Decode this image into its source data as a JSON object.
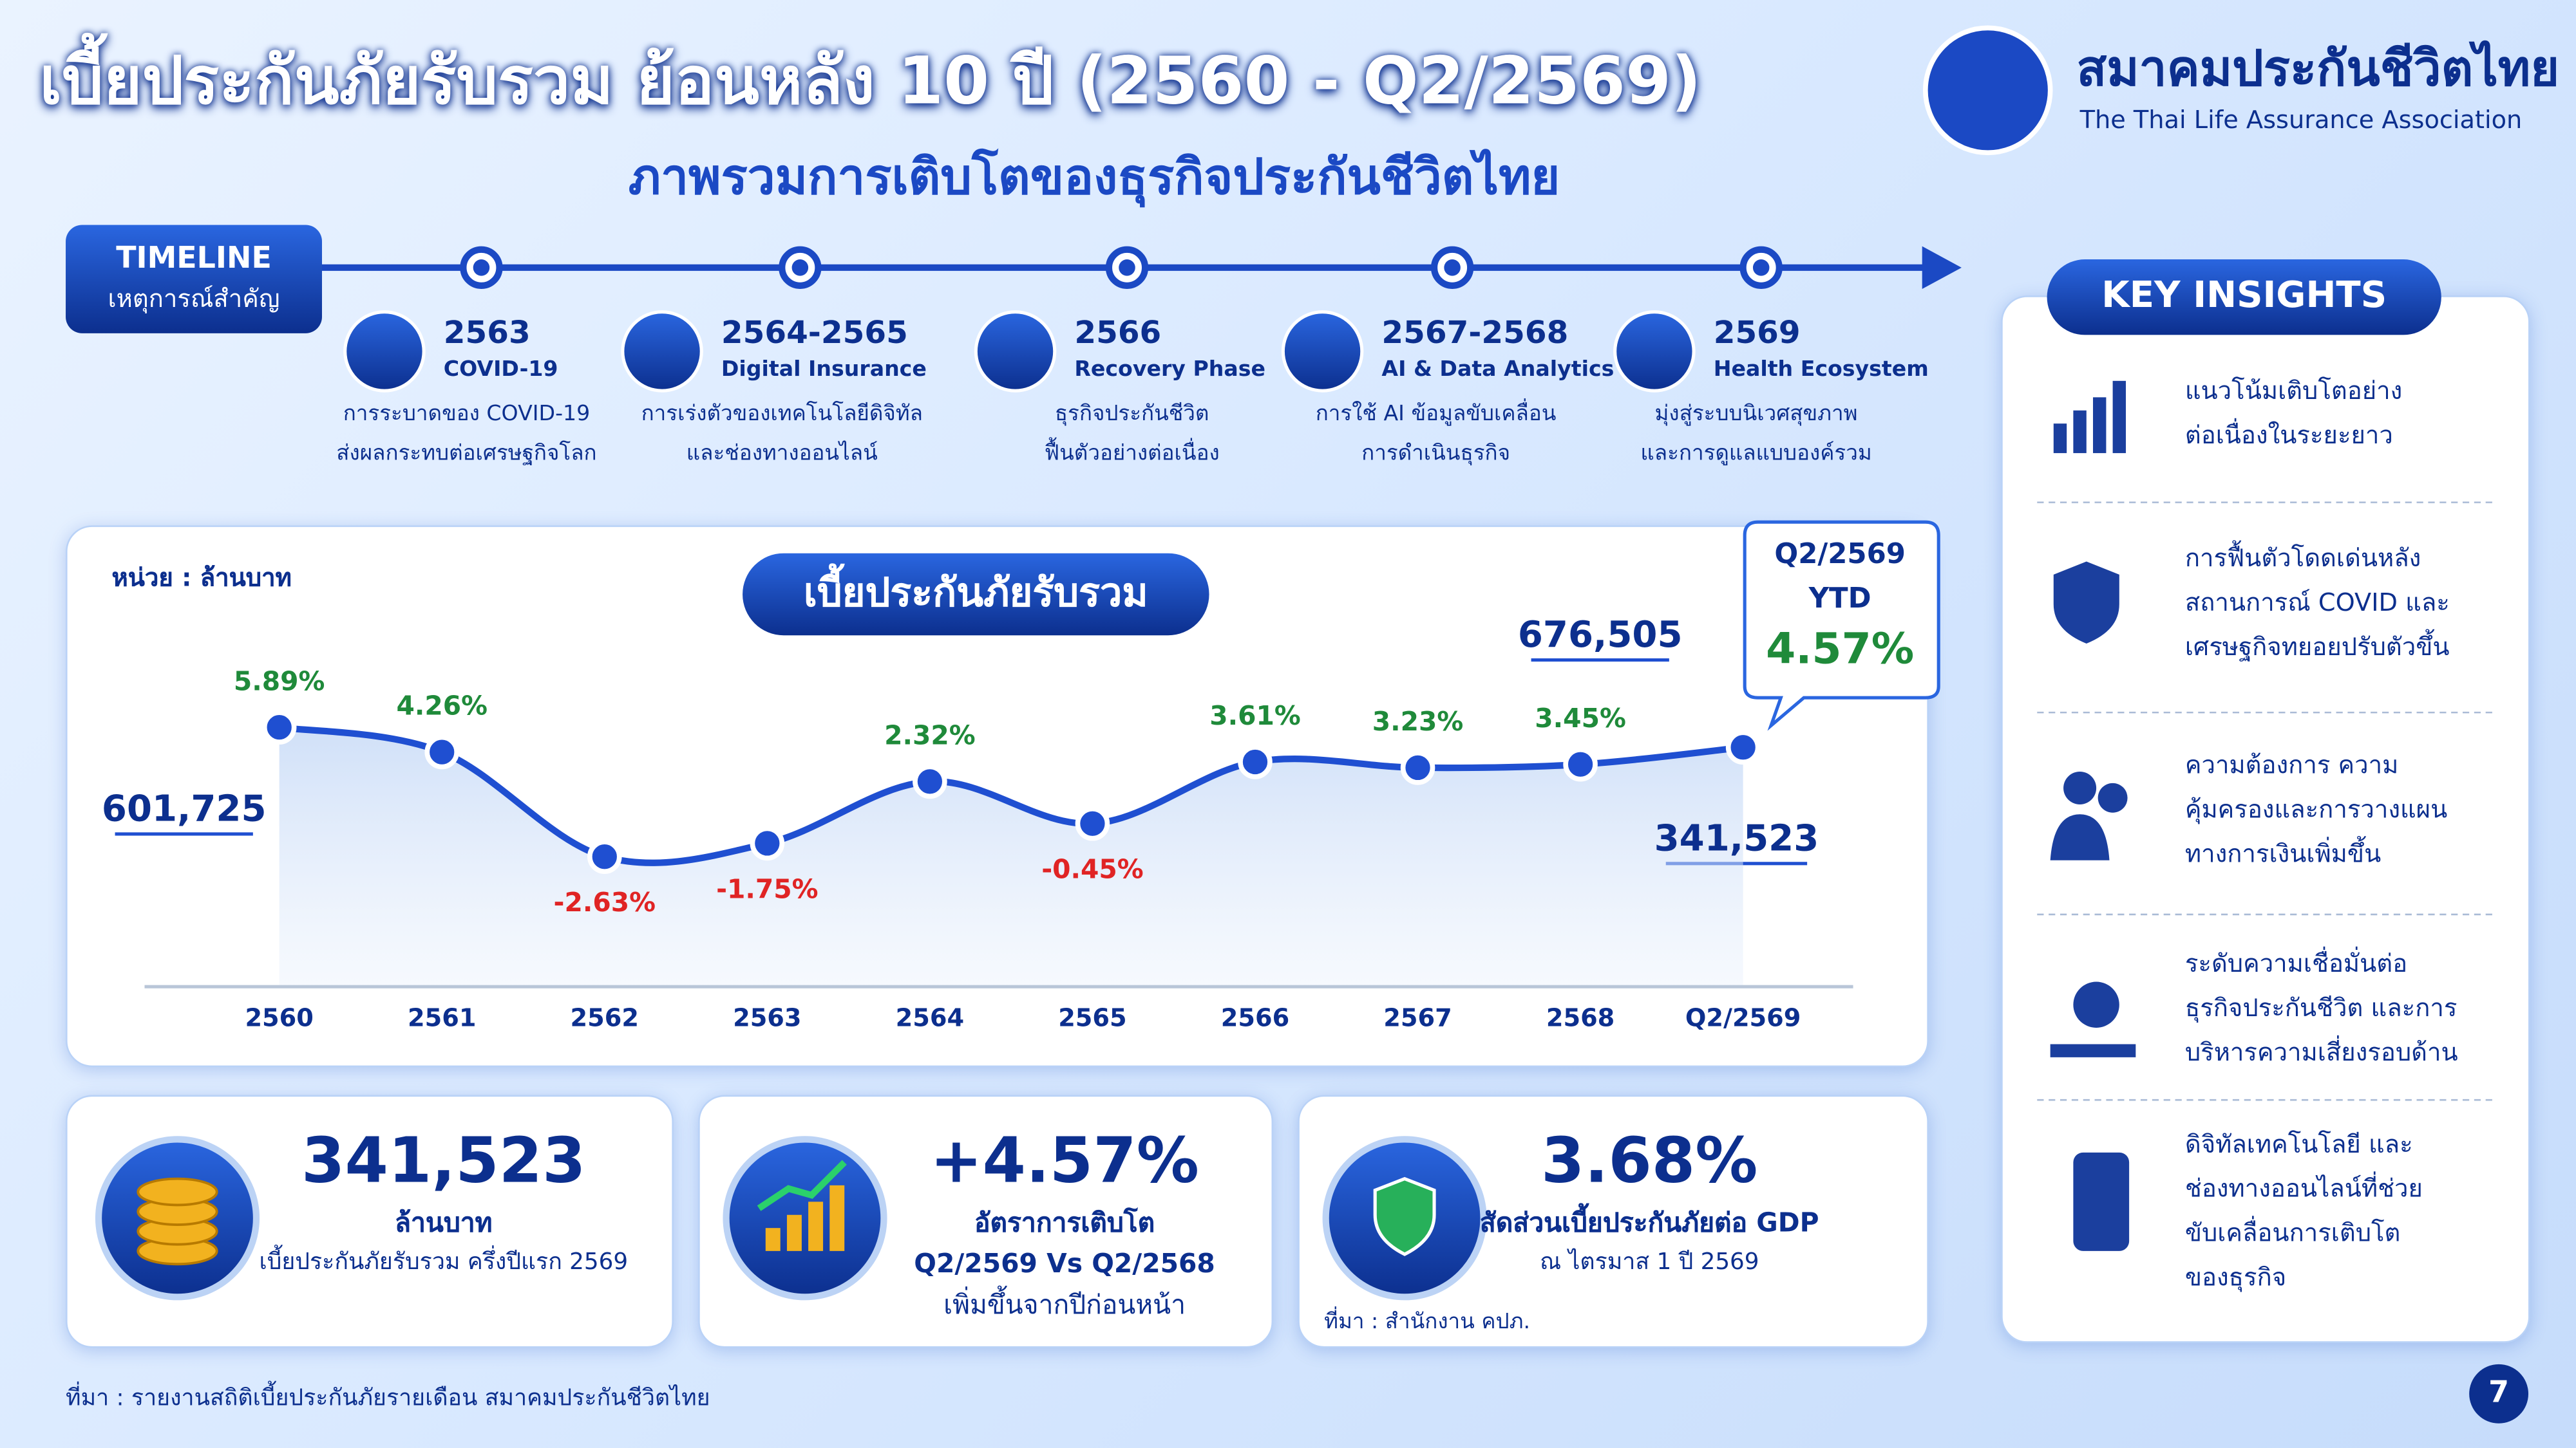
{
  "header": {
    "title": "เบี้ยประกันภัยรับรวม ย้อนหลัง 10 ปี (2560 - Q2/2569)",
    "subtitle": "ภาพรวมการเติบโตของธุรกิจประกันชีวิตไทย",
    "logo_th": "สมาคมประกันชีวิตไทย",
    "logo_en": "The Thai Life Assurance Association"
  },
  "timeline": {
    "label": "TIMELINE",
    "sublabel": "เหตุการณ์สำคัญ",
    "events": [
      {
        "year": "2563",
        "tag": "COVID-19",
        "lines": [
          "การระบาดของ COVID-19",
          "ส่งผลกระทบต่อเศรษฐกิจโลก"
        ]
      },
      {
        "year": "2564-2565",
        "tag": "Digital Insurance",
        "lines": [
          "การเร่งตัวของเทคโนโลยีดิจิทัล",
          "และช่องทางออนไลน์"
        ]
      },
      {
        "year": "2566",
        "tag": "Recovery Phase",
        "lines": [
          "ธุรกิจประกันชีวิต",
          "ฟื้นตัวอย่างต่อเนื่อง"
        ]
      },
      {
        "year": "2567-2568",
        "tag": "AI & Data Analytics",
        "lines": [
          "การใช้ AI ข้อมูลขับเคลื่อน",
          "การดำเนินธุรกิจ"
        ]
      },
      {
        "year": "2569",
        "tag": "Health Ecosystem",
        "lines": [
          "มุ่งสู่ระบบนิเวศสุขภาพ",
          "และการดูแลแบบองค์รวม"
        ]
      }
    ]
  },
  "chart_data": {
    "type": "line",
    "title": "เบี้ยประกันภัยรับรวม",
    "unit": "หน่วย : ล้านบาท",
    "categories": [
      "2560",
      "2561",
      "2562",
      "2563",
      "2564",
      "2565",
      "2566",
      "2567",
      "2568",
      "Q2/2569"
    ],
    "values": [
      5.89,
      4.26,
      -2.63,
      -1.75,
      2.32,
      -0.45,
      3.61,
      3.23,
      3.45,
      4.57
    ],
    "value_labels": [
      "5.89%",
      "4.26%",
      "-2.63%",
      "-1.75%",
      "2.32%",
      "-0.45%",
      "3.61%",
      "3.23%",
      "3.45%",
      "4.57%"
    ],
    "color": "#1f4fd1",
    "ylim": [
      -6,
      10
    ],
    "annotations": [
      "601,725",
      "676,505",
      "341,523"
    ],
    "callout": {
      "period": "Q2/2569",
      "label": "YTD"
    }
  },
  "cards": [
    {
      "value": "341,523",
      "lines": [
        "ล้านบาท",
        "เบี้ยประกันภัยรับรวม ครึ่งปีแรก 2569"
      ]
    },
    {
      "value": "+4.57%",
      "lines": [
        "อัตราการเติบโต",
        "Q2/2569 Vs Q2/2568",
        "เพิ่มขึ้นจากปีก่อนหน้า"
      ]
    },
    {
      "value": "3.68%",
      "lines": [
        "สัดส่วนเบี้ยประกันภัยต่อ GDP",
        "ณ ไตรมาส 1 ปี 2569"
      ],
      "source": "ที่มา : สำนักงาน คปภ."
    }
  ],
  "insights": {
    "title": "KEY INSIGHTS",
    "items": [
      [
        "แนวโน้มเติบโตอย่าง",
        "ต่อเนื่องในระยะยาว"
      ],
      [
        "การฟื้นตัวโดดเด่นหลัง",
        "สถานการณ์ COVID และ",
        "เศรษฐกิจทยอยปรับตัวขึ้น"
      ],
      [
        "ความต้องการ ความ",
        "คุ้มครองและการวางแผน",
        "ทางการเงินเพิ่มขึ้น"
      ],
      [
        "ระดับความเชื่อมั่นต่อ",
        "ธุรกิจประกันชีวิต และการ",
        "บริหารความเสี่ยงรอบด้าน"
      ],
      [
        "ดิจิทัลเทคโนโลยี และ",
        "ช่องทางออนไลน์ที่ช่วย",
        "ขับเคลื่อนการเติบโต",
        "ของธุรกิจ"
      ]
    ]
  },
  "footer": {
    "source": "ที่มา : รายงานสถิติเบี้ยประกันภัยรายเดือน สมาคมประกันชีวิตไทย",
    "page": "7"
  }
}
